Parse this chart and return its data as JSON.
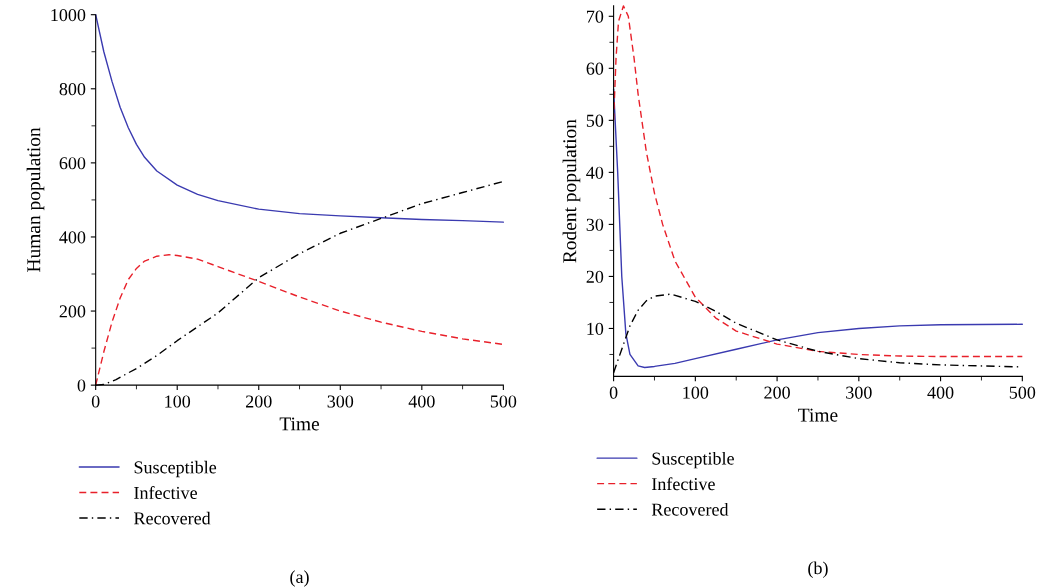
{
  "chart_data": [
    {
      "type": "line",
      "xlabel": "Time",
      "ylabel": "Human population",
      "xlim": [
        0,
        500
      ],
      "xticks": [
        0,
        100,
        200,
        300,
        400,
        500
      ],
      "ylim": [
        0,
        1000
      ],
      "yticks": [
        0,
        200,
        400,
        600,
        800,
        1000
      ],
      "legend": "bottom",
      "grid": false,
      "annotations": [
        "(a)"
      ],
      "series": [
        {
          "name": "Susceptible",
          "color": "#3a3ab0",
          "line_style": "solid",
          "x": [
            0,
            10,
            20,
            30,
            40,
            50,
            60,
            75,
            100,
            125,
            150,
            200,
            250,
            300,
            350,
            400,
            450,
            500
          ],
          "values": [
            1000,
            900,
            820,
            750,
            695,
            650,
            615,
            578,
            540,
            515,
            498,
            475,
            463,
            457,
            452,
            447,
            444,
            440
          ]
        },
        {
          "name": "Infective",
          "color": "#e8202a",
          "line_style": "dashed",
          "x": [
            0,
            10,
            20,
            30,
            40,
            50,
            60,
            75,
            90,
            100,
            125,
            150,
            200,
            250,
            300,
            350,
            400,
            450,
            500
          ],
          "values": [
            0,
            90,
            170,
            235,
            285,
            315,
            335,
            348,
            352,
            350,
            340,
            320,
            280,
            238,
            200,
            170,
            145,
            125,
            110
          ]
        },
        {
          "name": "Recovered",
          "color": "#000000",
          "line_style": "dashdot",
          "x": [
            0,
            10,
            25,
            50,
            75,
            100,
            150,
            200,
            250,
            300,
            350,
            400,
            450,
            500
          ],
          "values": [
            0,
            2,
            15,
            45,
            80,
            120,
            195,
            290,
            355,
            410,
            450,
            490,
            520,
            550
          ]
        }
      ]
    },
    {
      "type": "line",
      "xlabel": "Time",
      "ylabel": "Rodent population",
      "xlim": [
        0,
        500
      ],
      "xticks": [
        0,
        100,
        200,
        300,
        400,
        500
      ],
      "ylim": [
        0.8,
        72
      ],
      "yticks": [
        10,
        20,
        30,
        40,
        50,
        60,
        70
      ],
      "legend": "bottom",
      "grid": false,
      "annotations": [
        "(b)"
      ],
      "series": [
        {
          "name": "Susceptible",
          "color": "#3a3ab0",
          "line_style": "solid",
          "x": [
            0,
            5,
            10,
            15,
            20,
            30,
            38,
            50,
            75,
            100,
            150,
            200,
            250,
            300,
            350,
            400,
            500
          ],
          "values": [
            56,
            40,
            20,
            9,
            5,
            2.8,
            2.5,
            2.7,
            3.3,
            4.2,
            6,
            7.8,
            9.2,
            10,
            10.5,
            10.7,
            10.8
          ]
        },
        {
          "name": "Infective",
          "color": "#e8202a",
          "line_style": "dashed",
          "x": [
            0,
            3,
            6,
            12,
            18,
            25,
            30,
            40,
            50,
            60,
            75,
            100,
            125,
            150,
            200,
            250,
            300,
            350,
            400,
            500
          ],
          "values": [
            50,
            62,
            69,
            72,
            70,
            62,
            55,
            44,
            36,
            30,
            23,
            16,
            12,
            9.5,
            7,
            5.6,
            5,
            4.7,
            4.6,
            4.6
          ]
        },
        {
          "name": "Recovered",
          "color": "#000000",
          "line_style": "dashdot",
          "x": [
            0,
            10,
            20,
            30,
            40,
            50,
            70,
            100,
            125,
            150,
            200,
            250,
            300,
            350,
            400,
            500
          ],
          "values": [
            1.5,
            6,
            10.5,
            13.5,
            15.3,
            16.2,
            16.6,
            15.2,
            13.3,
            11,
            7.8,
            5.6,
            4.2,
            3.4,
            3,
            2.6
          ]
        }
      ]
    }
  ]
}
